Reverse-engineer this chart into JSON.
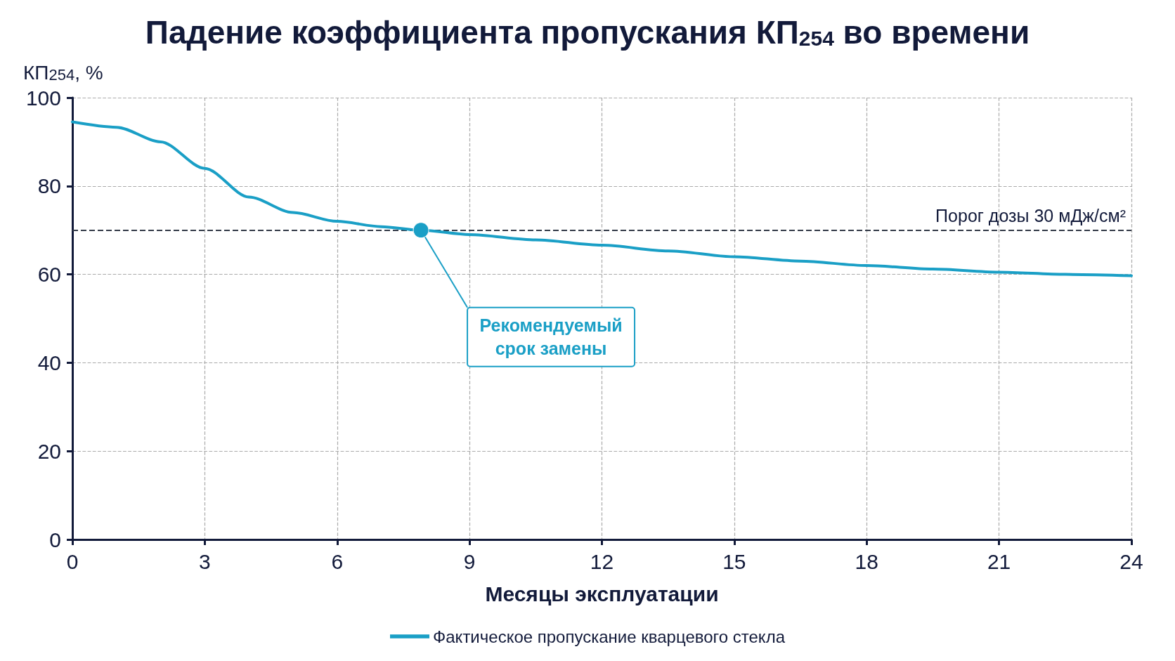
{
  "chart_data": {
    "type": "line",
    "title": "Падение коэффициента пропускания КП$_{254}$ во времени",
    "xlabel": "Месяцы эксплуатации",
    "ylabel": "КП$_{254}$, %",
    "x": [
      0,
      1,
      2,
      3,
      4,
      5,
      6,
      7,
      7.9,
      9,
      10.5,
      12,
      13.5,
      15,
      16.5,
      18,
      19.5,
      21,
      22.5,
      24
    ],
    "series": [
      {
        "name": "Фактическое пропускание кварцевого стекла",
        "color": "#1a9fc6",
        "values": [
          94.5,
          93.3,
          90,
          84,
          77.5,
          74,
          72,
          70.8,
          70,
          69,
          67.8,
          66.6,
          65.3,
          64,
          63,
          62,
          61.2,
          60.5,
          60,
          59.7
        ]
      }
    ],
    "xlim": [
      0,
      24
    ],
    "xticks": [
      0,
      3,
      6,
      9,
      12,
      15,
      18,
      21,
      24
    ],
    "ylim": [
      0,
      100
    ],
    "yticks": [
      0,
      20,
      40,
      60,
      80,
      100
    ],
    "ref_lines": [
      {
        "axis": "y",
        "value": 70,
        "label": "Порог дозы 30 мДж/см²",
        "color": "#333a48",
        "line_style": "dashed"
      }
    ],
    "annotations": [
      {
        "text": "Рекомендуемый срок замены",
        "x": 7.9,
        "y": 70
      }
    ],
    "grid": true,
    "legend": "bottom",
    "marker": "none",
    "line_style": "solid"
  }
}
